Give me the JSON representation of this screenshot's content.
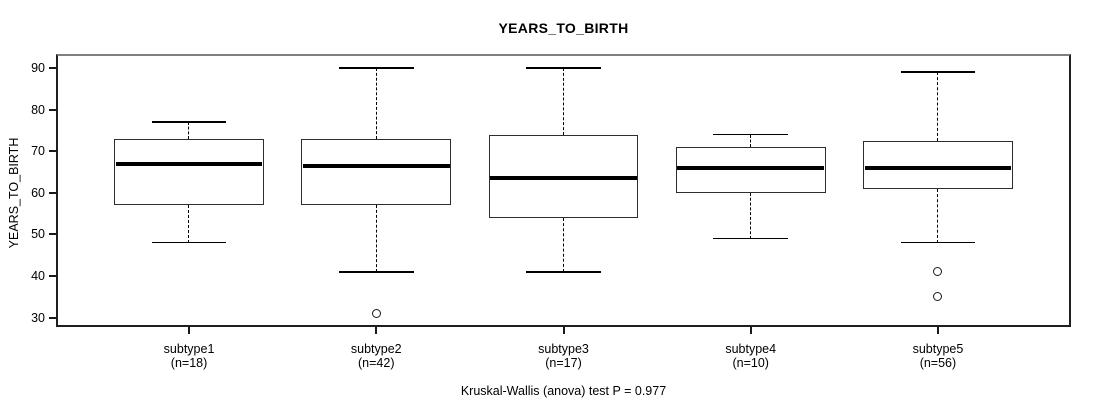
{
  "chart_data": {
    "type": "boxplot",
    "title": "YEARS_TO_BIRTH",
    "ylabel": "YEARS_TO_BIRTH",
    "caption": "Kruskal-Wallis (anova) test P = 0.977",
    "ylim": [
      28.2,
      92.9
    ],
    "yticks": [
      30,
      40,
      50,
      60,
      70,
      80,
      90
    ],
    "xlim": [
      0.3,
      5.7
    ],
    "box_width_units": 0.8,
    "grid": false,
    "legend": "none",
    "groups": [
      {
        "label": "subtype1",
        "sublabel": "(n=18)",
        "n": 18,
        "lower_whisker": 48,
        "q1": 57,
        "median": 67,
        "q3": 73,
        "upper_whisker": 77,
        "outliers": []
      },
      {
        "label": "subtype2",
        "sublabel": "(n=42)",
        "n": 42,
        "lower_whisker": 41,
        "q1": 57,
        "median": 66.5,
        "q3": 73,
        "upper_whisker": 90,
        "outliers": [
          31
        ]
      },
      {
        "label": "subtype3",
        "sublabel": "(n=17)",
        "n": 17,
        "lower_whisker": 41,
        "q1": 54,
        "median": 63.5,
        "q3": 74,
        "upper_whisker": 90,
        "outliers": []
      },
      {
        "label": "subtype4",
        "sublabel": "(n=10)",
        "n": 10,
        "lower_whisker": 49,
        "q1": 60,
        "median": 66,
        "q3": 71,
        "upper_whisker": 74,
        "outliers": []
      },
      {
        "label": "subtype5",
        "sublabel": "(n=56)",
        "n": 56,
        "lower_whisker": 48,
        "q1": 61,
        "median": 66,
        "q3": 72.5,
        "upper_whisker": 89,
        "outliers": [
          41,
          35
        ]
      }
    ],
    "colors": {
      "background": "#ffffff",
      "text": "#000000",
      "frame": "#1f1f1f",
      "frame_top": "#808080",
      "box_border": "#2e2e2e",
      "median": "#000000",
      "whisker": "#000000"
    }
  }
}
